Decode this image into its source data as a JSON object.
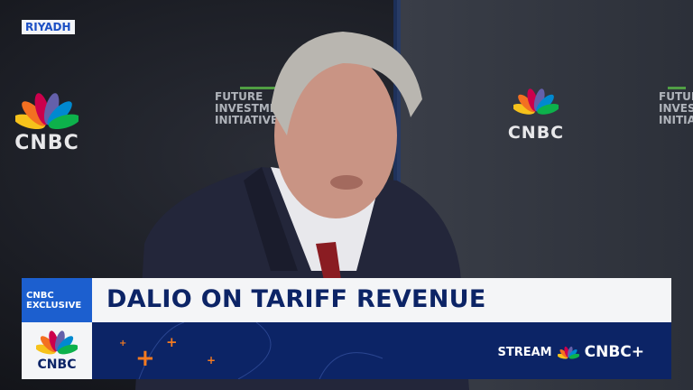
{
  "location_tag": "RIYADH",
  "backdrop": {
    "logos": [
      "CNBC",
      "CNBC"
    ],
    "event_text": [
      "FUTURE",
      "INVESTMENT",
      "INITIATIVE"
    ],
    "event_text_right": [
      "FUTURE",
      "INVESTM",
      "INITIATI"
    ]
  },
  "lower_third": {
    "badge_line1": "CNBC",
    "badge_line2": "EXCLUSIVE",
    "headline": "DALIO ON TARIFF REVENUE",
    "network_logo": "CNBC",
    "stream_label": "STREAM",
    "stream_brand": "CNBC+"
  },
  "colors": {
    "navy": "#0c2466",
    "accent_blue": "#1c5fcf",
    "orange": "#f47a20",
    "peacock": [
      "#f6c21b",
      "#f37021",
      "#cc004c",
      "#6460aa",
      "#0089d0",
      "#0db14b"
    ]
  }
}
